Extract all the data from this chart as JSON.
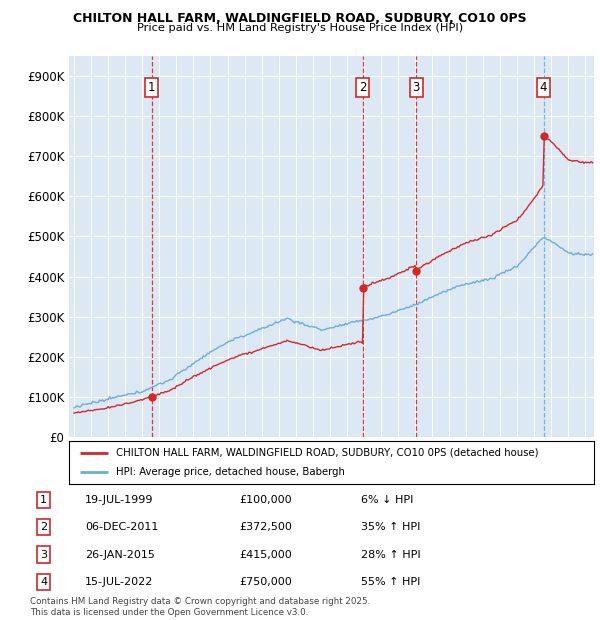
{
  "title1": "CHILTON HALL FARM, WALDINGFIELD ROAD, SUDBURY, CO10 0PS",
  "title2": "Price paid vs. HM Land Registry's House Price Index (HPI)",
  "plot_bg_color": "#dce9f5",
  "sale_dates_num": [
    1999.55,
    2011.92,
    2015.07,
    2022.54
  ],
  "sale_prices": [
    100000,
    372500,
    415000,
    750000
  ],
  "sale_labels": [
    "1",
    "2",
    "3",
    "4"
  ],
  "sale_vline_colors": [
    "#d62728",
    "#d62728",
    "#d62728",
    "#6baed6"
  ],
  "legend_line1": "CHILTON HALL FARM, WALDINGFIELD ROAD, SUDBURY, CO10 0PS (detached house)",
  "legend_line2": "HPI: Average price, detached house, Babergh",
  "table_data": [
    [
      "1",
      "19-JUL-1999",
      "£100,000",
      "6% ↓ HPI"
    ],
    [
      "2",
      "06-DEC-2011",
      "£372,500",
      "35% ↑ HPI"
    ],
    [
      "3",
      "26-JAN-2015",
      "£415,000",
      "28% ↑ HPI"
    ],
    [
      "4",
      "15-JUL-2022",
      "£750,000",
      "55% ↑ HPI"
    ]
  ],
  "footnote": "Contains HM Land Registry data © Crown copyright and database right 2025.\nThis data is licensed under the Open Government Licence v3.0.",
  "hpi_color": "#6baed6",
  "price_color": "#d62728",
  "ylim": [
    0,
    950000
  ],
  "xlim_start": 1994.7,
  "xlim_end": 2025.5
}
